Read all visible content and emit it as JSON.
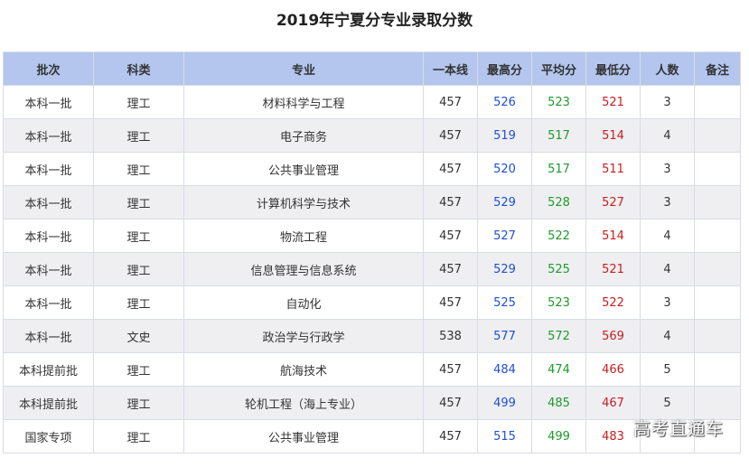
{
  "title": "2019年宁夏分专业录取分数",
  "headers": [
    "批次",
    "科类",
    "专业",
    "一本线",
    "最高分",
    "平均分",
    "最低分",
    "人数",
    "备注"
  ],
  "rows": [
    {
      "batch": "本科一批",
      "category": "理工",
      "major": "材料科学与工程",
      "line": "457",
      "max": "526",
      "avg": "523",
      "min": "521",
      "count": "3",
      "note": ""
    },
    {
      "batch": "本科一批",
      "category": "理工",
      "major": "电子商务",
      "line": "457",
      "max": "519",
      "avg": "517",
      "min": "514",
      "count": "4",
      "note": ""
    },
    {
      "batch": "本科一批",
      "category": "理工",
      "major": "公共事业管理",
      "line": "457",
      "max": "520",
      "avg": "517",
      "min": "511",
      "count": "3",
      "note": ""
    },
    {
      "batch": "本科一批",
      "category": "理工",
      "major": "计算机科学与技术",
      "line": "457",
      "max": "529",
      "avg": "528",
      "min": "527",
      "count": "3",
      "note": ""
    },
    {
      "batch": "本科一批",
      "category": "理工",
      "major": "物流工程",
      "line": "457",
      "max": "527",
      "avg": "522",
      "min": "514",
      "count": "4",
      "note": ""
    },
    {
      "batch": "本科一批",
      "category": "理工",
      "major": "信息管理与信息系统",
      "line": "457",
      "max": "529",
      "avg": "525",
      "min": "521",
      "count": "4",
      "note": ""
    },
    {
      "batch": "本科一批",
      "category": "理工",
      "major": "自动化",
      "line": "457",
      "max": "525",
      "avg": "523",
      "min": "522",
      "count": "3",
      "note": ""
    },
    {
      "batch": "本科一批",
      "category": "文史",
      "major": "政治学与行政学",
      "line": "538",
      "max": "577",
      "avg": "572",
      "min": "569",
      "count": "4",
      "note": ""
    },
    {
      "batch": "本科提前批",
      "category": "理工",
      "major": "航海技术",
      "line": "457",
      "max": "484",
      "avg": "474",
      "min": "466",
      "count": "5",
      "note": ""
    },
    {
      "batch": "本科提前批",
      "category": "理工",
      "major": "轮机工程（海上专业）",
      "line": "457",
      "max": "499",
      "avg": "485",
      "min": "467",
      "count": "5",
      "note": ""
    },
    {
      "batch": "国家专项",
      "category": "理工",
      "major": "公共事业管理",
      "line": "457",
      "max": "515",
      "avg": "499",
      "min": "483",
      "count": "",
      "note": ""
    }
  ],
  "watermark": "高考直通车",
  "colors": {
    "header_bg": "#b4c6ee",
    "max_score": "#1f4fd1",
    "avg_score": "#1e9a2a",
    "min_score": "#c81e1e",
    "stripe": "#efeff2"
  }
}
